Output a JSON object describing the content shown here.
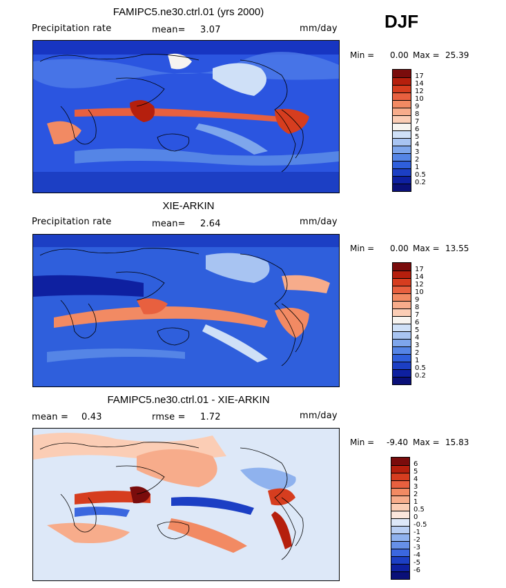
{
  "season": "DJF",
  "panels": [
    {
      "title": "FAMIPC5.ne30.ctrl.01 (yrs 2000)",
      "left_label": "Precipitation rate",
      "stat1_label": "mean=",
      "stat1_value": "3.07",
      "stat2_label": "",
      "stat2_value": "",
      "units": "mm/day",
      "min_label": "Min =",
      "min_value": "0.00",
      "max_label": "Max =",
      "max_value": "25.39",
      "scale": "precip",
      "colorbar_labels": [
        "17",
        "14",
        "12",
        "10",
        "9",
        "8",
        "7",
        "6",
        "5",
        "4",
        "3",
        "2",
        "1",
        "0.5",
        "0.2"
      ],
      "colorbar_colors": [
        "#7a0c0c",
        "#b51f0d",
        "#d63d1f",
        "#e8603f",
        "#f28a63",
        "#f7ac8b",
        "#fbcdb5",
        "#f7f4f0",
        "#cfe0f7",
        "#a8c4f2",
        "#7ea6ec",
        "#5585e6",
        "#2f5fdc",
        "#1c3fc4",
        "#0e20a0",
        "#0a1078"
      ]
    },
    {
      "title": "XIE-ARKIN",
      "left_label": "Precipitation rate",
      "stat1_label": "mean=",
      "stat1_value": "2.64",
      "stat2_label": "",
      "stat2_value": "",
      "units": "mm/day",
      "min_label": "Min =",
      "min_value": "0.00",
      "max_label": "Max =",
      "max_value": "13.55",
      "scale": "precip",
      "colorbar_labels": [
        "17",
        "14",
        "12",
        "10",
        "9",
        "8",
        "7",
        "6",
        "5",
        "4",
        "3",
        "2",
        "1",
        "0.5",
        "0.2"
      ],
      "colorbar_colors": [
        "#7a0c0c",
        "#b51f0d",
        "#d63d1f",
        "#e8603f",
        "#f28a63",
        "#f7ac8b",
        "#fbcdb5",
        "#f7f4f0",
        "#cfe0f7",
        "#a8c4f2",
        "#7ea6ec",
        "#5585e6",
        "#2f5fdc",
        "#1c3fc4",
        "#0e20a0",
        "#0a1078"
      ]
    },
    {
      "title": "FAMIPC5.ne30.ctrl.01 - XIE-ARKIN",
      "left_label": "",
      "stat1_label": "mean =",
      "stat1_value": "0.43",
      "stat2_label": "rmse =",
      "stat2_value": "1.72",
      "units": "mm/day",
      "min_label": "Min =",
      "min_value": "-9.40",
      "max_label": "Max =",
      "max_value": "15.83",
      "scale": "diff",
      "colorbar_labels": [
        "6",
        "5",
        "4",
        "3",
        "2",
        "1",
        "0.5",
        "0",
        "-0.5",
        "-1",
        "-2",
        "-3",
        "-4",
        "-5",
        "-6"
      ],
      "colorbar_colors": [
        "#7a0c0c",
        "#b51f0d",
        "#d63d1f",
        "#e8603f",
        "#f28a63",
        "#f7ac8b",
        "#fbcdb5",
        "#fbe6dc",
        "#dde8f8",
        "#b9cff3",
        "#8fb2ee",
        "#6690e8",
        "#3b67df",
        "#1c3fc4",
        "#0e20a0",
        "#0a1078"
      ]
    }
  ]
}
